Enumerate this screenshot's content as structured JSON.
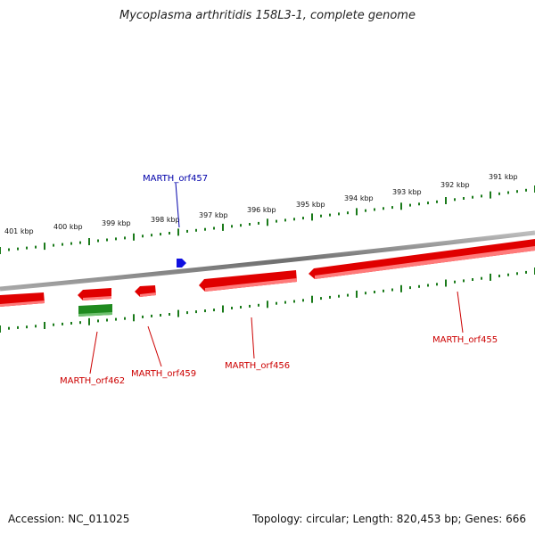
{
  "header": {
    "title": "Mycoplasma arthritidis 158L3-1, complete genome"
  },
  "footer": {
    "accession": "Accession: NC_011025",
    "stats": "Topology: circular; Length: 820,453 bp; Genes: 666"
  },
  "scale": {
    "ticks": [
      "401 kbp",
      "400 kbp",
      "399 kbp",
      "398 kbp",
      "397 kbp",
      "396 kbp",
      "395 kbp",
      "394 kbp",
      "393 kbp",
      "392 kbp",
      "391 kbp"
    ]
  },
  "genes": [
    {
      "name": "MARTH_orf457",
      "color": "#0000cc"
    },
    {
      "name": "MARTH_orf462",
      "color": "#cc0000"
    },
    {
      "name": "MARTH_orf459",
      "color": "#cc0000"
    },
    {
      "name": "MARTH_orf456",
      "color": "#cc0000"
    },
    {
      "name": "MARTH_orf455",
      "color": "#cc0000"
    }
  ],
  "colors": {
    "backbone": "#7a7a7a",
    "gene_forward": "#e00000",
    "gene_other": "#1f8a1f",
    "tick": "#1a7a1a"
  }
}
